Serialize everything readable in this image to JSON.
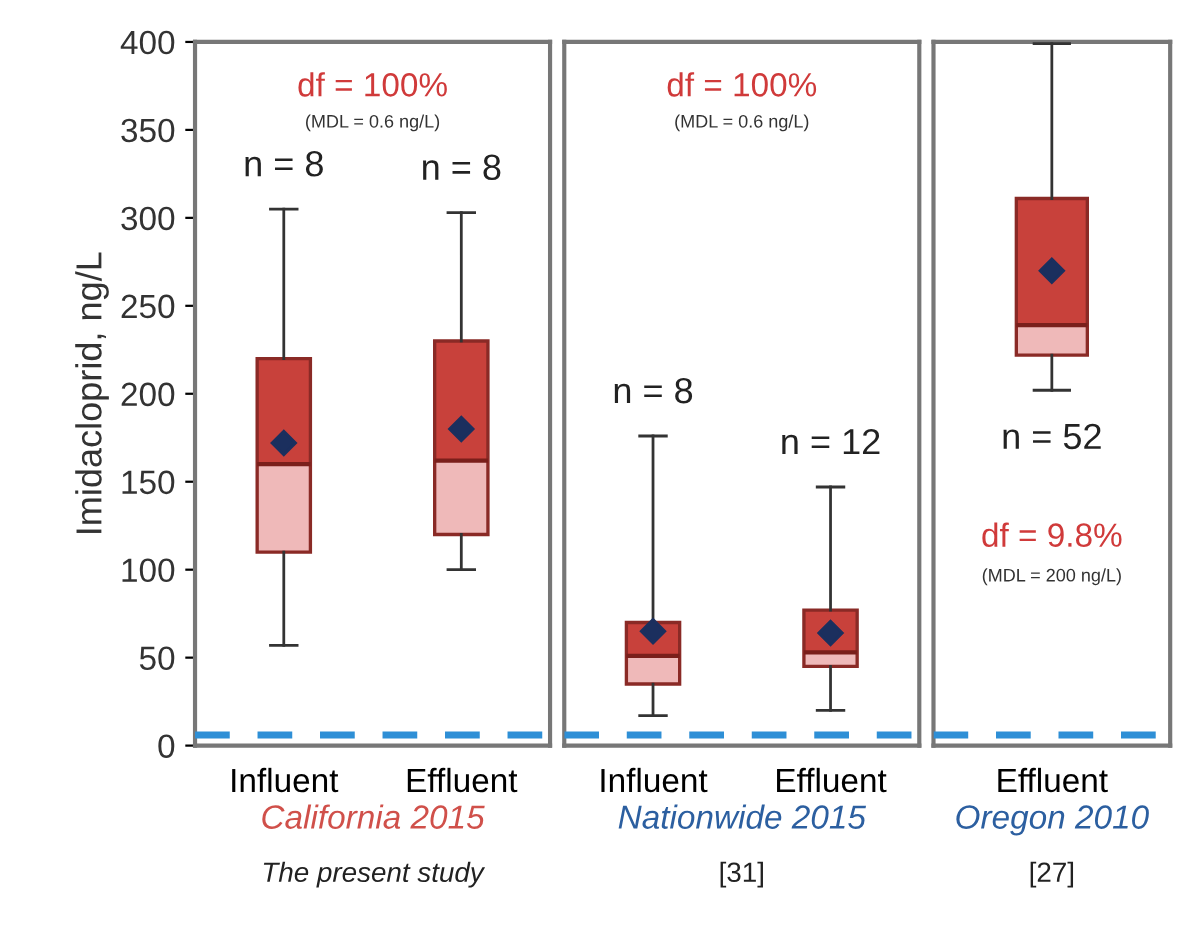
{
  "chart_data": [
    {
      "type": "box",
      "categories": [
        "Influent",
        "Effluent"
      ],
      "xlabel": "California 2015",
      "ylabel": "Imidacloprid, ng/L",
      "ylim": [
        0,
        400
      ],
      "yticks": [
        0,
        50,
        100,
        150,
        200,
        250,
        300,
        350,
        400
      ],
      "grid": false,
      "series": [
        {
          "color": "#c8413b",
          "boxes": [
            {
              "low": 57,
              "q1": 110,
              "median": 160,
              "q3": 220,
              "high": 305,
              "mean": 172
            },
            {
              "low": 100,
              "q1": 120,
              "median": 162,
              "q3": 230,
              "high": 303,
              "mean": 180
            }
          ]
        },
        {
          "type": "bar",
          "color": "#efb9b9",
          "base": [
            110,
            120
          ],
          "values": [
            50,
            42
          ]
        }
      ],
      "ref_lines": [
        {
          "axis": "y",
          "value": 6,
          "color": "#2e8fd6",
          "line_style": "dashed"
        }
      ],
      "annotations": [
        "df = 100%",
        "(MDL = 0.6 ng/L)",
        "The present study",
        "n = 8",
        "n = 8"
      ]
    },
    {
      "type": "box",
      "categories": [
        "Influent",
        "Effluent"
      ],
      "xlabel": "Nationwide 2015",
      "ylim": [
        0,
        400
      ],
      "tick_labels": "x",
      "grid": false,
      "series": [
        {
          "color": "#c8413b",
          "boxes": [
            {
              "low": 17,
              "q1": 35,
              "median": 51,
              "q3": 70,
              "high": 176,
              "mean": 65
            },
            {
              "low": 20,
              "q1": 45,
              "median": 53,
              "q3": 77,
              "high": 147,
              "mean": 64
            }
          ]
        },
        {
          "type": "bar",
          "color": "#efb9b9",
          "base": [
            35,
            45
          ],
          "values": [
            16,
            8
          ]
        }
      ],
      "ref_lines": [
        {
          "axis": "y",
          "value": 6,
          "color": "#2e8fd6",
          "line_style": "dashed"
        }
      ],
      "annotations": [
        "df = 100%",
        "(MDL = 0.6 ng/L)",
        "[31]",
        "n = 8",
        "n = 12"
      ]
    },
    {
      "type": "box",
      "categories": [
        "Effluent"
      ],
      "xlabel": "Oregon 2010",
      "ylim": [
        0,
        400
      ],
      "tick_labels": "x",
      "grid": false,
      "series": [
        {
          "color": "#c8413b",
          "boxes": [
            {
              "low": 202,
              "q1": 222,
              "median": 239,
              "q3": 311,
              "high": 399,
              "mean": 270
            }
          ]
        },
        {
          "type": "bar",
          "color": "#efb9b9",
          "base": [
            222
          ],
          "values": [
            17
          ]
        }
      ],
      "ref_lines": [
        {
          "axis": "y",
          "value": 6,
          "color": "#2e8fd6",
          "line_style": "dashed"
        }
      ],
      "annotations": [
        "df = 9.8%",
        "(MDL = 200 ng/L)",
        "[27]",
        "n = 52"
      ]
    }
  ]
}
